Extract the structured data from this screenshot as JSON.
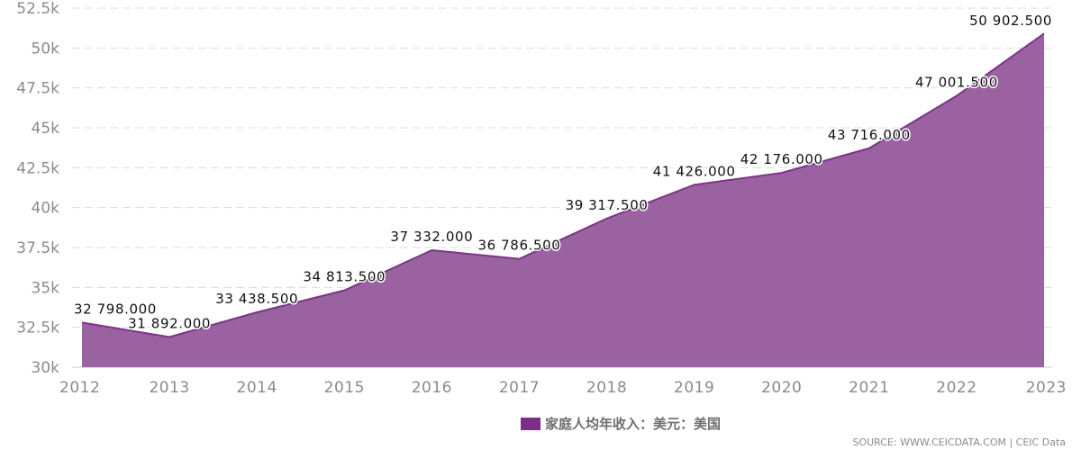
{
  "chart_data": {
    "type": "area",
    "categories": [
      "2012",
      "2013",
      "2014",
      "2015",
      "2016",
      "2017",
      "2018",
      "2019",
      "2020",
      "2021",
      "2022",
      "2023"
    ],
    "series": [
      {
        "name": "家庭人均年收入：美元：美国",
        "values": [
          32798.0,
          31892.0,
          33438.5,
          34813.5,
          37332.0,
          36786.5,
          39317.5,
          41426.0,
          42176.0,
          43716.0,
          47001.5,
          50902.5
        ],
        "labels": [
          "32 798.000",
          "31 892.000",
          "33 438.500",
          "34 813.500",
          "37 332.000",
          "36 786.500",
          "39 317.500",
          "41 426.000",
          "42 176.000",
          "43 716.000",
          "47 001.500",
          "50 902.500"
        ],
        "color": "#9b62a2",
        "line_color": "#7b3585"
      }
    ],
    "yticks": [
      30000,
      32500,
      35000,
      37500,
      40000,
      42500,
      45000,
      47500,
      50000,
      52500
    ],
    "ytick_labels": [
      "30k",
      "32.5k",
      "35k",
      "37.5k",
      "40k",
      "42.5k",
      "45k",
      "47.5k",
      "50k",
      "52.5k"
    ],
    "ylim": [
      30000,
      52500
    ],
    "grid": true,
    "legend_position": "bottom-center"
  },
  "legend": {
    "label": "家庭人均年收入：美元：美国",
    "swatch_color": "#7b2f87"
  },
  "source_text": "SOURCE: WWW.CEICDATA.COM | CEIC Data"
}
